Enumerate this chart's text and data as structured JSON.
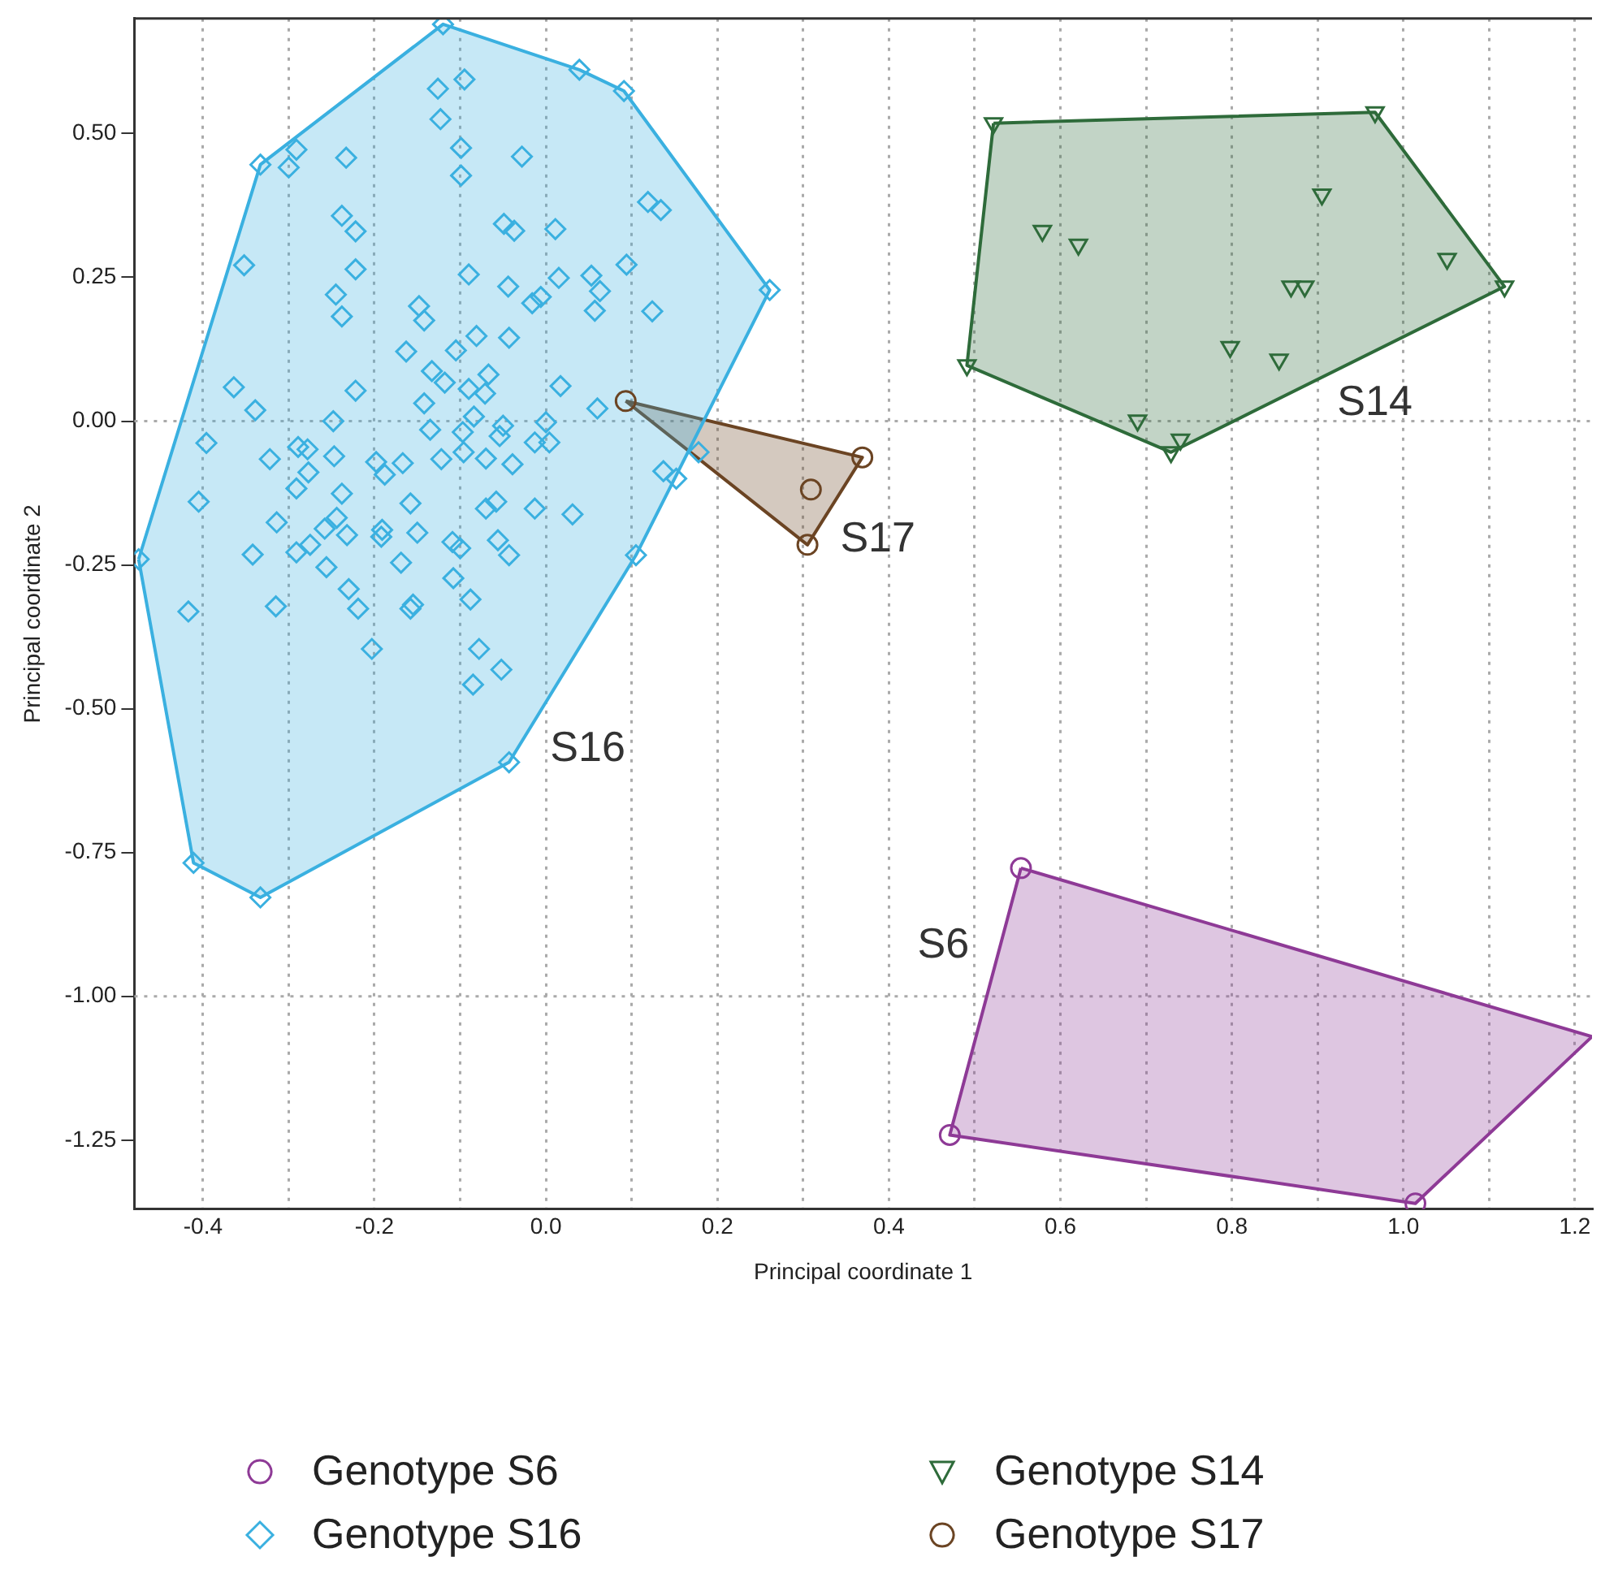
{
  "chart_data": {
    "type": "scatter",
    "xlabel": "Principal coordinate 1",
    "ylabel": "Principal coordinate 2",
    "xlim": [
      -0.48,
      1.22
    ],
    "ylim": [
      -1.37,
      0.7
    ],
    "xticks": [
      {
        "value": -0.4,
        "label": "-0.4"
      },
      {
        "value": -0.3,
        "label": null
      },
      {
        "value": -0.2,
        "label": "-0.2"
      },
      {
        "value": -0.1,
        "label": null
      },
      {
        "value": 0,
        "label": "0.0"
      },
      {
        "value": 0.1,
        "label": null
      },
      {
        "value": 0.2,
        "label": "0.2"
      },
      {
        "value": 0.3,
        "label": null
      },
      {
        "value": 0.4,
        "label": "0.4"
      },
      {
        "value": 0.5,
        "label": null
      },
      {
        "value": 0.6,
        "label": "0.6"
      },
      {
        "value": 0.7,
        "label": null
      },
      {
        "value": 0.8,
        "label": "0.8"
      },
      {
        "value": 0.9,
        "label": null
      },
      {
        "value": 1,
        "label": "1.0"
      },
      {
        "value": 1.1,
        "label": null
      },
      {
        "value": 1.2,
        "label": "1.2"
      }
    ],
    "yticks": [
      {
        "value": 0.5,
        "label": "0.50"
      },
      {
        "value": 0.25,
        "label": "0.25"
      },
      {
        "value": 0,
        "label": "0.00"
      },
      {
        "value": -0.25,
        "label": "-0.25"
      },
      {
        "value": -0.5,
        "label": "-0.50"
      },
      {
        "value": -0.75,
        "label": "-0.75"
      },
      {
        "value": -1,
        "label": "-1.00"
      },
      {
        "value": -1.25,
        "label": "-1.25"
      }
    ],
    "grid": "x",
    "legend": "bottom",
    "ref_lines": [
      {
        "axis": "y",
        "value": 0,
        "color": "#aaaaaa",
        "line_style": "dotted"
      },
      {
        "axis": "y",
        "value": -1,
        "color": "#aaaaaa",
        "line_style": "dotted"
      }
    ],
    "annotations": [
      "S16",
      "S17",
      "S14",
      "S6"
    ],
    "series": [
      {
        "name": "Genotype S6",
        "color": "#8e3a96",
        "marker": "circle",
        "x": [
          0.554,
          0.471,
          1.014
        ],
        "values": [
          -0.777,
          -1.241,
          -1.36
        ]
      },
      {
        "name": "Genotype S14",
        "color": "#2e6b3a",
        "marker": "triangle",
        "x": [
          0.522,
          0.967,
          0.579,
          0.621,
          0.905,
          1.051,
          1.118,
          0.869,
          0.885,
          0.798,
          0.855,
          0.491,
          0.69,
          0.74,
          0.729
        ],
        "values": [
          0.518,
          0.537,
          0.331,
          0.307,
          0.394,
          0.282,
          0.234,
          0.234,
          0.234,
          0.129,
          0.107,
          0.097,
          0.001,
          -0.032,
          -0.054
        ]
      },
      {
        "name": "Genotype S16",
        "color": "#3ab0e0",
        "marker": "diamond",
        "x": [
          -0.12,
          -0.126,
          -0.095,
          0.039,
          0.091,
          -0.123,
          -0.333,
          -0.291,
          -0.3,
          -0.233,
          -0.099,
          -0.099,
          -0.028,
          -0.238,
          -0.222,
          -0.049,
          -0.037,
          0.011,
          0.119,
          0.134,
          -0.352,
          -0.222,
          -0.09,
          -0.044,
          0.015,
          0.053,
          0.063,
          0.094,
          -0.245,
          -0.238,
          -0.148,
          -0.142,
          -0.016,
          -0.006,
          0.057,
          0.124,
          -0.081,
          -0.043,
          -0.105,
          -0.163,
          -0.133,
          -0.118,
          -0.067,
          -0.09,
          -0.071,
          0.017,
          -0.364,
          -0.339,
          -0.222,
          -0.142,
          -0.084,
          0.06,
          -0.248,
          0,
          -0.05,
          -0.135,
          -0.097,
          -0.396,
          -0.322,
          -0.289,
          -0.278,
          -0.247,
          -0.277,
          -0.291,
          -0.238,
          -0.198,
          -0.188,
          -0.167,
          -0.122,
          -0.096,
          -0.07,
          -0.054,
          -0.039,
          -0.013,
          0.004,
          -0.405,
          -0.314,
          -0.342,
          -0.291,
          -0.275,
          -0.256,
          -0.258,
          -0.244,
          -0.232,
          -0.315,
          -0.417,
          -0.23,
          -0.219,
          -0.203,
          -0.191,
          -0.192,
          -0.169,
          -0.158,
          -0.15,
          -0.158,
          -0.155,
          -0.109,
          -0.1,
          -0.108,
          -0.088,
          -0.07,
          -0.058,
          -0.056,
          -0.043,
          -0.013,
          0.031,
          -0.078,
          -0.052,
          -0.085,
          0.105,
          -0.475,
          -0.043,
          -0.411,
          -0.333,
          0.261,
          0.178,
          0.137,
          0.152
        ],
        "values": [
          0.69,
          0.578,
          0.594,
          0.611,
          0.574,
          0.525,
          0.446,
          0.472,
          0.441,
          0.458,
          0.475,
          0.427,
          0.46,
          0.357,
          0.33,
          0.343,
          0.331,
          0.334,
          0.381,
          0.367,
          0.271,
          0.264,
          0.255,
          0.234,
          0.249,
          0.253,
          0.226,
          0.272,
          0.22,
          0.182,
          0.2,
          0.175,
          0.205,
          0.216,
          0.192,
          0.191,
          0.148,
          0.145,
          0.123,
          0.121,
          0.087,
          0.067,
          0.081,
          0.056,
          0.048,
          0.061,
          0.059,
          0.019,
          0.053,
          0.031,
          0.008,
          0.022,
          0,
          -0.002,
          -0.008,
          -0.015,
          -0.019,
          -0.038,
          -0.066,
          -0.045,
          -0.049,
          -0.061,
          -0.089,
          -0.117,
          -0.126,
          -0.071,
          -0.093,
          -0.073,
          -0.066,
          -0.054,
          -0.065,
          -0.026,
          -0.075,
          -0.037,
          -0.037,
          -0.14,
          -0.176,
          -0.232,
          -0.228,
          -0.215,
          -0.254,
          -0.187,
          -0.168,
          -0.198,
          -0.322,
          -0.331,
          -0.292,
          -0.326,
          -0.396,
          -0.189,
          -0.201,
          -0.246,
          -0.143,
          -0.194,
          -0.326,
          -0.319,
          -0.21,
          -0.221,
          -0.273,
          -0.31,
          -0.152,
          -0.14,
          -0.207,
          -0.233,
          -0.152,
          -0.162,
          -0.396,
          -0.432,
          -0.458,
          -0.233,
          -0.24,
          -0.593,
          -0.768,
          -0.828,
          0.228,
          -0.054,
          -0.087,
          -0.1
        ]
      },
      {
        "name": "Genotype S17",
        "color": "#6b4423",
        "marker": "circle",
        "x": [
          0.093,
          0.369,
          0.309,
          0.305
        ],
        "values": [
          0.035,
          -0.063,
          -0.119,
          -0.215
        ]
      },
      {
        "type": "area",
        "color": "#3ab0e0",
        "x": [
          -0.475,
          -0.333,
          -0.12,
          0.039,
          0.091,
          0.261,
          0.105,
          -0.043,
          -0.333,
          -0.411,
          -0.475
        ],
        "values": [
          -0.24,
          0.446,
          0.69,
          0.611,
          0.574,
          0.228,
          -0.233,
          -0.593,
          -0.828,
          -0.768,
          -0.24
        ]
      },
      {
        "type": "area",
        "color": "#2e6b3a",
        "x": [
          0.522,
          0.967,
          1.118,
          0.729,
          0.491,
          0.522
        ],
        "values": [
          0.518,
          0.537,
          0.234,
          -0.054,
          0.097,
          0.518
        ]
      },
      {
        "type": "area",
        "color": "#6b4423",
        "x": [
          0.093,
          0.369,
          0.305,
          0.093
        ],
        "values": [
          0.035,
          -0.063,
          -0.215,
          0.035
        ]
      },
      {
        "type": "area",
        "color": "#8e3a96",
        "x": [
          0.554,
          1.22,
          1.014,
          0.471,
          0.554
        ],
        "values": [
          -0.777,
          -1.07,
          -1.36,
          -1.241,
          -0.777
        ]
      }
    ]
  }
}
